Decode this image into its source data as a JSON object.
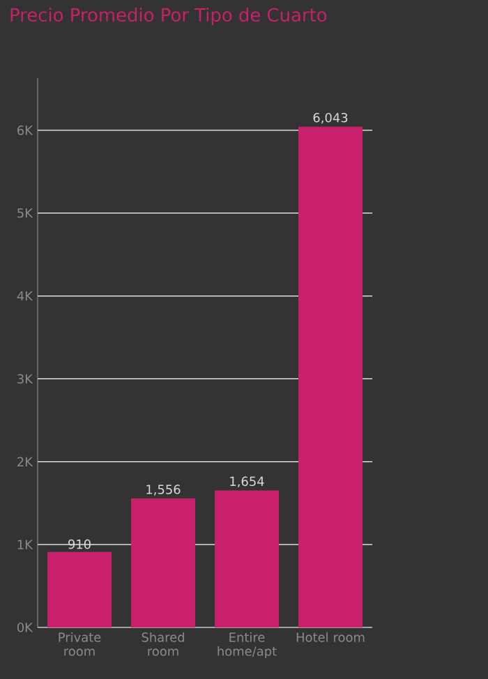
{
  "chart_data": {
    "type": "bar",
    "title": "Precio Promedio Por Tipo de Cuarto",
    "categories": [
      "Private room",
      "Shared room",
      "Entire home/apt",
      "Hotel room"
    ],
    "values": [
      910,
      1556,
      1654,
      6043
    ],
    "value_labels": [
      "910",
      "1,556",
      "1,654",
      "6,043"
    ],
    "color": "#c8206a",
    "ylim": [
      0,
      6630
    ],
    "yticks": [
      {
        "value": 0,
        "label": "0K"
      },
      {
        "value": 1000,
        "label": "1K"
      },
      {
        "value": 2000,
        "label": "2K"
      },
      {
        "value": 3000,
        "label": "3K"
      },
      {
        "value": 4000,
        "label": "4K"
      },
      {
        "value": 5000,
        "label": "5K"
      },
      {
        "value": 6000,
        "label": "6K"
      }
    ],
    "grid": "y"
  }
}
